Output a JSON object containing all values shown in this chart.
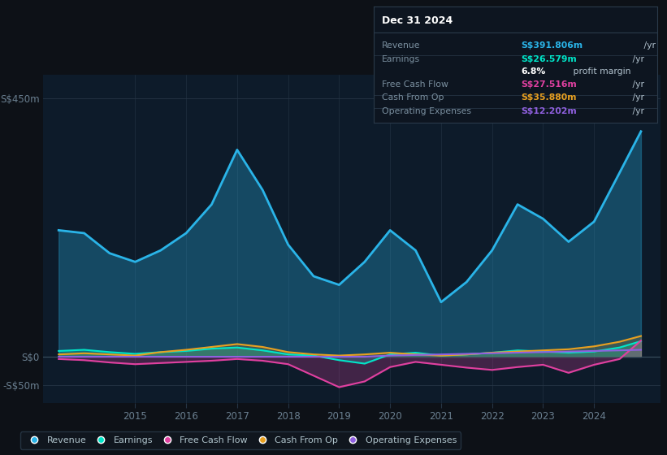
{
  "bg_color": "#0d1117",
  "plot_bg_color": "#0d1b2a",
  "grid_color": "#253545",
  "ylim": [
    -80,
    490
  ],
  "yticks": [
    -50,
    0,
    450
  ],
  "ytick_labels": [
    "-S$50m",
    "S$0",
    "S$450m"
  ],
  "xlim": [
    2013.2,
    2025.3
  ],
  "xticks": [
    2015,
    2016,
    2017,
    2018,
    2019,
    2020,
    2021,
    2022,
    2023,
    2024
  ],
  "years": [
    2013.5,
    2014.0,
    2014.5,
    2015.0,
    2015.5,
    2016.0,
    2016.5,
    2017.0,
    2017.5,
    2018.0,
    2018.5,
    2019.0,
    2019.5,
    2020.0,
    2020.5,
    2021.0,
    2021.5,
    2022.0,
    2022.5,
    2023.0,
    2023.5,
    2024.0,
    2024.5,
    2024.92
  ],
  "revenue": [
    220,
    215,
    180,
    165,
    185,
    215,
    265,
    360,
    290,
    195,
    140,
    125,
    165,
    220,
    185,
    95,
    130,
    185,
    265,
    240,
    200,
    235,
    320,
    392
  ],
  "earnings": [
    10,
    12,
    8,
    5,
    8,
    10,
    14,
    16,
    11,
    4,
    2,
    -6,
    -12,
    4,
    7,
    2,
    4,
    7,
    11,
    9,
    7,
    9,
    16,
    27
  ],
  "free_cash_flow": [
    -4,
    -6,
    -10,
    -13,
    -11,
    -9,
    -7,
    -4,
    -7,
    -13,
    -33,
    -53,
    -43,
    -18,
    -9,
    -14,
    -19,
    -23,
    -18,
    -14,
    -28,
    -14,
    -4,
    28
  ],
  "cash_from_op": [
    4,
    6,
    4,
    2,
    8,
    12,
    17,
    22,
    17,
    8,
    4,
    2,
    4,
    7,
    4,
    2,
    4,
    7,
    9,
    11,
    13,
    18,
    26,
    36
  ],
  "operating_expenses": [
    0,
    0,
    0,
    0,
    0,
    0,
    0,
    0,
    0,
    0,
    0,
    0,
    0,
    2,
    3,
    4,
    5,
    6,
    7,
    8,
    9,
    10,
    11,
    12
  ],
  "revenue_color": "#2ab4e8",
  "earnings_color": "#00e5c8",
  "free_cash_flow_color": "#e040a0",
  "cash_from_op_color": "#e8a020",
  "operating_expenses_color": "#9060e0",
  "legend_labels": [
    "Revenue",
    "Earnings",
    "Free Cash Flow",
    "Cash From Op",
    "Operating Expenses"
  ],
  "info_box_title": "Dec 31 2024",
  "info_rows": [
    {
      "label": "Revenue",
      "value": "S$391.806m",
      "unit": " /yr",
      "value_color": "#2ab4e8"
    },
    {
      "label": "Earnings",
      "value": "S$26.579m",
      "unit": " /yr",
      "value_color": "#00e5c8"
    },
    {
      "label": "",
      "value": "6.8%",
      "unit": " profit margin",
      "value_color": "#ffffff"
    },
    {
      "label": "Free Cash Flow",
      "value": "S$27.516m",
      "unit": " /yr",
      "value_color": "#e040a0"
    },
    {
      "label": "Cash From Op",
      "value": "S$35.880m",
      "unit": " /yr",
      "value_color": "#e8a020"
    },
    {
      "label": "Operating Expenses",
      "value": "S$12.202m",
      "unit": " /yr",
      "value_color": "#9060e0"
    }
  ]
}
